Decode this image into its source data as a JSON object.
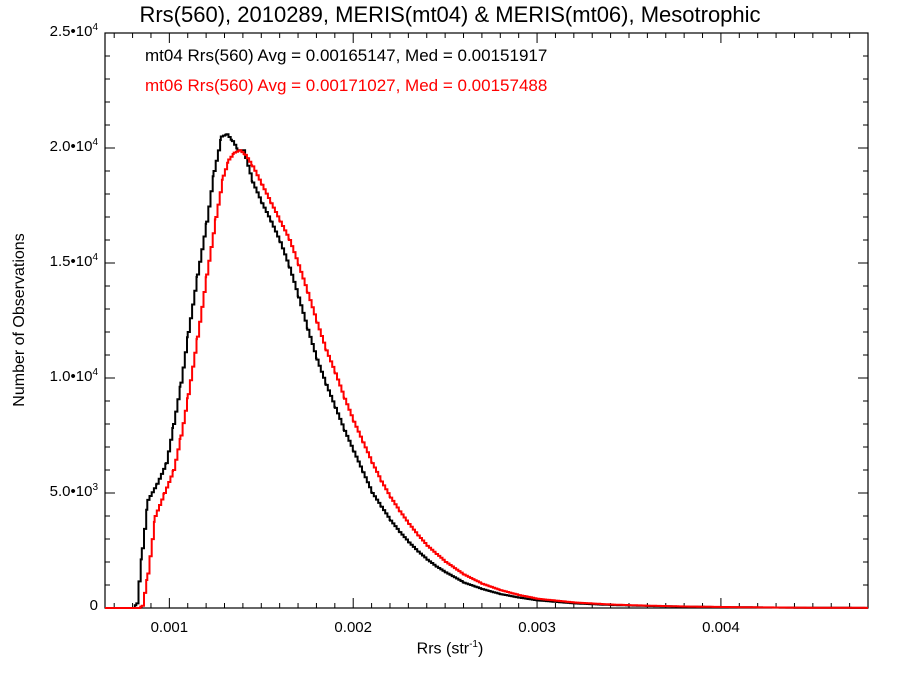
{
  "chart_data": {
    "type": "line",
    "title": "Rrs(560), 2010289, MERIS(mt04) & MERIS(mt06), Mesotrophic",
    "xlabel": "Rrs (str",
    "xlabel_sup": "-1",
    "xlabel_close": ")",
    "ylabel": "Number of Observations",
    "xlim": [
      0.00065,
      0.0048
    ],
    "ylim": [
      0,
      25000
    ],
    "grid": false,
    "legend_position": "top-left",
    "x_ticks": [
      {
        "value": 0.001,
        "label": "0.001"
      },
      {
        "value": 0.002,
        "label": "0.002"
      },
      {
        "value": 0.003,
        "label": "0.003"
      },
      {
        "value": 0.004,
        "label": "0.004"
      }
    ],
    "y_ticks": [
      {
        "value": 0,
        "label": "0",
        "sup": ""
      },
      {
        "value": 5000,
        "label": "5.0•10",
        "sup": "3"
      },
      {
        "value": 10000,
        "label": "1.0•10",
        "sup": "4"
      },
      {
        "value": 15000,
        "label": "1.5•10",
        "sup": "4"
      },
      {
        "value": 20000,
        "label": "2.0•10",
        "sup": "4"
      },
      {
        "value": 25000,
        "label": "2.5•10",
        "sup": "4"
      }
    ],
    "series": [
      {
        "name": "mt04",
        "color": "#000000",
        "stats_text": "mt04 Rrs(560) Avg = 0.00165147, Med = 0.00151917",
        "points": [
          [
            0.00065,
            0
          ],
          [
            0.0008,
            0
          ],
          [
            0.00082,
            200
          ],
          [
            0.00085,
            2600
          ],
          [
            0.00088,
            4700
          ],
          [
            0.00093,
            5400
          ],
          [
            0.00098,
            6300
          ],
          [
            0.00102,
            8000
          ],
          [
            0.00106,
            9800
          ],
          [
            0.0011,
            12000
          ],
          [
            0.00115,
            14500
          ],
          [
            0.0012,
            16800
          ],
          [
            0.00124,
            19000
          ],
          [
            0.00128,
            20500
          ],
          [
            0.00131,
            20600
          ],
          [
            0.00134,
            20300
          ],
          [
            0.00137,
            19900
          ],
          [
            0.0014,
            19900
          ],
          [
            0.00145,
            18500
          ],
          [
            0.0015,
            17600
          ],
          [
            0.00155,
            16800
          ],
          [
            0.0016,
            15900
          ],
          [
            0.00165,
            14800
          ],
          [
            0.0017,
            13500
          ],
          [
            0.00175,
            12100
          ],
          [
            0.0018,
            10800
          ],
          [
            0.00185,
            9700
          ],
          [
            0.0019,
            8700
          ],
          [
            0.00195,
            7700
          ],
          [
            0.002,
            6800
          ],
          [
            0.00205,
            5900
          ],
          [
            0.0021,
            5000
          ],
          [
            0.00215,
            4400
          ],
          [
            0.0022,
            3800
          ],
          [
            0.00225,
            3300
          ],
          [
            0.0023,
            2850
          ],
          [
            0.00235,
            2450
          ],
          [
            0.0024,
            2100
          ],
          [
            0.00245,
            1800
          ],
          [
            0.0025,
            1550
          ],
          [
            0.0026,
            1100
          ],
          [
            0.0027,
            820
          ],
          [
            0.0028,
            600
          ],
          [
            0.0029,
            450
          ],
          [
            0.003,
            330
          ],
          [
            0.0032,
            200
          ],
          [
            0.0034,
            130
          ],
          [
            0.0036,
            90
          ],
          [
            0.0038,
            60
          ],
          [
            0.004,
            40
          ],
          [
            0.0042,
            25
          ],
          [
            0.0044,
            15
          ],
          [
            0.0046,
            8
          ],
          [
            0.0048,
            5
          ]
        ]
      },
      {
        "name": "mt06",
        "color": "#ff0000",
        "stats_text": "mt06 Rrs(560) Avg = 0.00171027, Med = 0.00157488",
        "points": [
          [
            0.00065,
            0
          ],
          [
            0.00083,
            0
          ],
          [
            0.00085,
            100
          ],
          [
            0.00088,
            1500
          ],
          [
            0.00092,
            4000
          ],
          [
            0.00097,
            5000
          ],
          [
            0.00102,
            6000
          ],
          [
            0.00106,
            7500
          ],
          [
            0.0011,
            9300
          ],
          [
            0.00115,
            11800
          ],
          [
            0.0012,
            14500
          ],
          [
            0.00125,
            17000
          ],
          [
            0.00129,
            18800
          ],
          [
            0.00132,
            19500
          ],
          [
            0.00135,
            19800
          ],
          [
            0.00138,
            19900
          ],
          [
            0.00141,
            19700
          ],
          [
            0.00145,
            19200
          ],
          [
            0.0015,
            18400
          ],
          [
            0.00155,
            17600
          ],
          [
            0.0016,
            16800
          ],
          [
            0.00165,
            16000
          ],
          [
            0.0017,
            14900
          ],
          [
            0.00175,
            13700
          ],
          [
            0.0018,
            12400
          ],
          [
            0.00185,
            11200
          ],
          [
            0.0019,
            10200
          ],
          [
            0.00195,
            9100
          ],
          [
            0.002,
            8100
          ],
          [
            0.00205,
            7200
          ],
          [
            0.0021,
            6300
          ],
          [
            0.00215,
            5500
          ],
          [
            0.0022,
            4800
          ],
          [
            0.00225,
            4200
          ],
          [
            0.0023,
            3650
          ],
          [
            0.00235,
            3150
          ],
          [
            0.0024,
            2700
          ],
          [
            0.00245,
            2350
          ],
          [
            0.0025,
            2000
          ],
          [
            0.0026,
            1450
          ],
          [
            0.0027,
            1050
          ],
          [
            0.0028,
            770
          ],
          [
            0.0029,
            560
          ],
          [
            0.003,
            400
          ],
          [
            0.0032,
            240
          ],
          [
            0.0034,
            150
          ],
          [
            0.0036,
            100
          ],
          [
            0.0038,
            65
          ],
          [
            0.004,
            45
          ],
          [
            0.0042,
            28
          ],
          [
            0.0044,
            17
          ],
          [
            0.0046,
            10
          ],
          [
            0.0048,
            6
          ]
        ]
      }
    ]
  }
}
